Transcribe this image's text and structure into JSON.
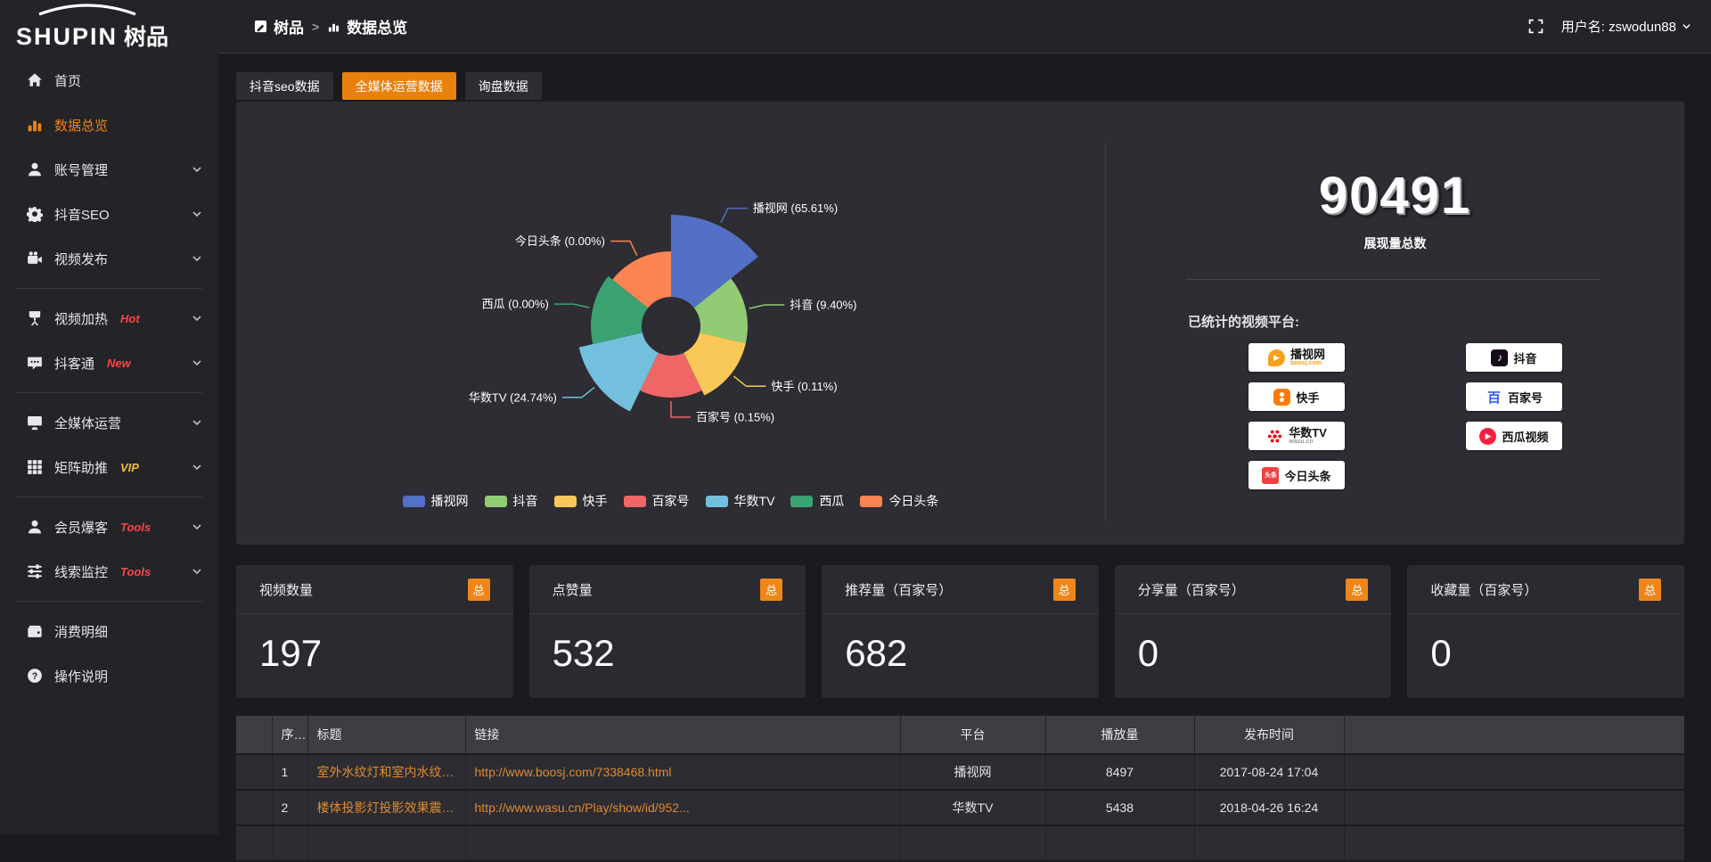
{
  "header": {
    "logo_text": "SHUPIN",
    "logo_suffix": "树品",
    "breadcrumb": [
      {
        "label": "树品",
        "icon": "app-icon"
      },
      {
        "label": "数据总览",
        "icon": "overview-chart-icon"
      }
    ],
    "breadcrumb_separator": ">",
    "user_label": "用户名: zswodun88"
  },
  "sidebar": {
    "items": [
      {
        "icon": "home-icon",
        "label": "首页"
      },
      {
        "icon": "bar-chart-icon",
        "label": "数据总览",
        "active": true
      },
      {
        "icon": "user-icon",
        "label": "账号管理",
        "chevron": true
      },
      {
        "icon": "gear-icon",
        "label": "抖音SEO",
        "chevron": true
      },
      {
        "icon": "video-icon",
        "label": "视频发布",
        "chevron": true,
        "divider_after": true
      },
      {
        "icon": "screen-icon",
        "label": "视频加热",
        "badge": "Hot",
        "badge_color": "#ff4545",
        "chevron": true
      },
      {
        "icon": "chat-icon",
        "label": "抖客通",
        "badge": "New",
        "badge_color": "#ff4545",
        "chevron": true,
        "divider_after": true
      },
      {
        "icon": "monitor-icon",
        "label": "全媒体运营",
        "chevron": true
      },
      {
        "icon": "grid-icon",
        "label": "矩阵助推",
        "badge": "VIP",
        "badge_color": "#f0c030",
        "chevron": true,
        "divider_after": true
      },
      {
        "icon": "member-icon",
        "label": "会员爆客",
        "badge": "Tools",
        "badge_color": "#ff4545",
        "chevron": true
      },
      {
        "icon": "sliders-icon",
        "label": "线索监控",
        "badge": "Tools",
        "badge_color": "#ff4545",
        "chevron": true,
        "divider_after": true
      },
      {
        "icon": "wallet-icon",
        "label": "消费明细"
      },
      {
        "icon": "help-icon",
        "label": "操作说明"
      }
    ]
  },
  "tabs": [
    {
      "label": "抖音seo数据"
    },
    {
      "label": "全媒体运营数据",
      "active": true
    },
    {
      "label": "询盘数据"
    }
  ],
  "chart_data": {
    "type": "pie",
    "subtype": "nightingale-rose",
    "unit": "percent",
    "legend_position": "bottom",
    "items": [
      {
        "name": "播视网",
        "value": 65.61,
        "label": "播视网 (65.61%)",
        "color": "#5470c6",
        "rose_radius_px": 125
      },
      {
        "name": "抖音",
        "value": 9.4,
        "label": "抖音 (9.40%)",
        "color": "#91cc75",
        "rose_radius_px": 86
      },
      {
        "name": "快手",
        "value": 0.11,
        "label": "快手 (0.11%)",
        "color": "#fac858",
        "rose_radius_px": 86
      },
      {
        "name": "百家号",
        "value": 0.15,
        "label": "百家号 (0.15%)",
        "color": "#ee6666",
        "rose_radius_px": 80
      },
      {
        "name": "华数TV",
        "value": 24.74,
        "label": "华数TV (24.74%)",
        "color": "#73c0de",
        "rose_radius_px": 106
      },
      {
        "name": "西瓜",
        "value": 0.0,
        "label": "西瓜 (0.00%)",
        "color": "#3ba272",
        "rose_radius_px": 90
      },
      {
        "name": "今日头条",
        "value": 0.0,
        "label": "今日头条 (0.00%)",
        "color": "#fc8452",
        "rose_radius_px": 84
      }
    ],
    "legend": [
      "播视网",
      "抖音",
      "快手",
      "百家号",
      "华数TV",
      "西瓜",
      "今日头条"
    ]
  },
  "overview": {
    "total_value": "90491",
    "total_label": "展现量总数",
    "platforms_label": "已统计的视频平台:",
    "platforms": [
      {
        "name": "播视网",
        "sub": "boosj.com",
        "style": "boosj"
      },
      {
        "name": "快手",
        "style": "kuaishou"
      },
      {
        "name": "华数TV",
        "sub": "wasu.cn",
        "style": "wasu"
      },
      {
        "name": "今日头条",
        "style": "toutiao"
      },
      {
        "name": "抖音",
        "style": "douyin"
      },
      {
        "name": "百家号",
        "style": "baijia"
      },
      {
        "name": "西瓜视频",
        "style": "xigua"
      }
    ]
  },
  "stat_cards": [
    {
      "title": "视频数量",
      "badge": "总",
      "value": "197"
    },
    {
      "title": "点赞量",
      "badge": "总",
      "value": "532"
    },
    {
      "title": "推荐量（百家号）",
      "badge": "总",
      "value": "682"
    },
    {
      "title": "分享量（百家号）",
      "badge": "总",
      "value": "0"
    },
    {
      "title": "收藏量（百家号）",
      "badge": "总",
      "value": "0"
    }
  ],
  "table": {
    "headers": [
      "序号",
      "标题",
      "链接",
      "平台",
      "播放量",
      "发布时间"
    ],
    "rows": [
      {
        "index": "1",
        "title": "室外水纹灯和室内水纹灯的区别和简介",
        "link": "http://www.boosj.com/7338468.html",
        "platform": "播视网",
        "plays": "8497",
        "time": "2017-08-24 17:04"
      },
      {
        "index": "2",
        "title": "楼体投影灯投影效果震撼上市",
        "link": "http://www.wasu.cn/Play/show/id/952...",
        "platform": "华数TV",
        "plays": "5438",
        "time": "2018-04-26 16:24"
      }
    ]
  },
  "colors": {
    "accent_orange": "#ee8315",
    "tab_active_orange": "#e8820d",
    "link_orange": "#e08a2e",
    "hot_badge_red": "#ff4545",
    "vip_badge_yellow": "#f0c030",
    "panel_bg": "#2d2d33",
    "page_bg": "#1b1b1f"
  }
}
